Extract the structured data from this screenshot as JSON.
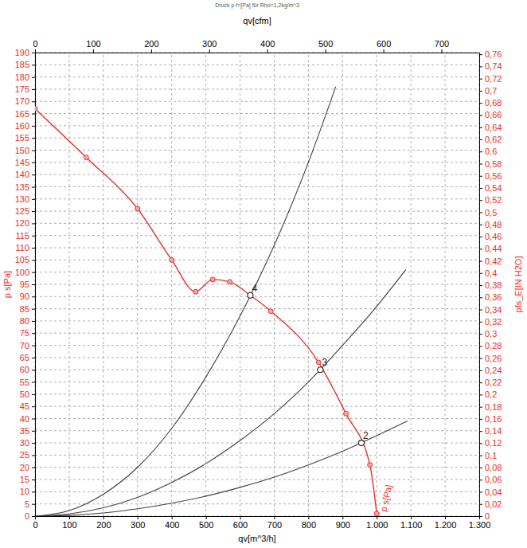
{
  "chart_data": {
    "type": "line",
    "title": "Druck p f=[Pa] für Rho=1,2kg/m^3",
    "x_label": "qv[m^3/h]",
    "x2_label": "qv[cfm]",
    "y_label": "p s[Pa]",
    "y2_label": "pfs_E[IN H2O]",
    "grid": true,
    "xlim": [
      0,
      1300
    ],
    "xticks": [
      0,
      100,
      200,
      300,
      400,
      500,
      600,
      700,
      800,
      900,
      {
        "value": 1000,
        "label": "1.000"
      },
      {
        "value": 1100,
        "label": "1.100"
      },
      {
        "value": 1200,
        "label": "1.200"
      },
      {
        "value": 1300,
        "label": "1.300"
      }
    ],
    "x2lim": [
      0,
      765.1
    ],
    "x2ticks": [
      0,
      100,
      200,
      300,
      400,
      500,
      600,
      700
    ],
    "ylim": [
      0,
      190
    ],
    "yticks": [
      0,
      5,
      10,
      15,
      20,
      25,
      30,
      35,
      40,
      45,
      50,
      55,
      60,
      65,
      70,
      75,
      80,
      85,
      90,
      95,
      100,
      105,
      110,
      115,
      120,
      125,
      130,
      135,
      140,
      145,
      150,
      155,
      160,
      165,
      170,
      175,
      180,
      185,
      190
    ],
    "y2lim": [
      0,
      0.7628
    ],
    "y2ticks": [
      0,
      {
        "value": 0.02,
        "label": "0,02"
      },
      {
        "value": 0.04,
        "label": "0,04"
      },
      {
        "value": 0.06,
        "label": "0,06"
      },
      {
        "value": 0.08,
        "label": "0,08"
      },
      {
        "value": 0.1,
        "label": "0,1"
      },
      {
        "value": 0.12,
        "label": "0,12"
      },
      {
        "value": 0.14,
        "label": "0,14"
      },
      {
        "value": 0.16,
        "label": "0,16"
      },
      {
        "value": 0.18,
        "label": "0,18"
      },
      {
        "value": 0.2,
        "label": "0,2"
      },
      {
        "value": 0.22,
        "label": "0,22"
      },
      {
        "value": 0.24,
        "label": "0,24"
      },
      {
        "value": 0.26,
        "label": "0,26"
      },
      {
        "value": 0.28,
        "label": "0,28"
      },
      {
        "value": 0.3,
        "label": "0,3"
      },
      {
        "value": 0.32,
        "label": "0,32"
      },
      {
        "value": 0.34,
        "label": "0,34"
      },
      {
        "value": 0.36,
        "label": "0,36"
      },
      {
        "value": 0.38,
        "label": "0,38"
      },
      {
        "value": 0.4,
        "label": "0,4"
      },
      {
        "value": 0.42,
        "label": "0,42"
      },
      {
        "value": 0.44,
        "label": "0,44"
      },
      {
        "value": 0.46,
        "label": "0,46"
      },
      {
        "value": 0.48,
        "label": "0,48"
      },
      {
        "value": 0.5,
        "label": "0,5"
      },
      {
        "value": 0.52,
        "label": "0,52"
      },
      {
        "value": 0.54,
        "label": "0,54"
      },
      {
        "value": 0.56,
        "label": "0,56"
      },
      {
        "value": 0.58,
        "label": "0,58"
      },
      {
        "value": 0.6,
        "label": "0,6"
      },
      {
        "value": 0.62,
        "label": "0,62"
      },
      {
        "value": 0.64,
        "label": "0,64"
      },
      {
        "value": 0.66,
        "label": "0,66"
      },
      {
        "value": 0.68,
        "label": "0,68"
      },
      {
        "value": 0.7,
        "label": "0,7"
      },
      {
        "value": 0.72,
        "label": "0,72"
      },
      {
        "value": 0.74,
        "label": "0,74"
      },
      {
        "value": 0.76,
        "label": "0,76"
      }
    ],
    "series": [
      {
        "name": "p s[Pa]",
        "color": "#e8302a",
        "marker": "circle",
        "line_style": "solid",
        "x": [
          0,
          150,
          300,
          400,
          470,
          520,
          570,
          630,
          690,
          830,
          910,
          980,
          1000
        ],
        "values": [
          167,
          147,
          126,
          105,
          92,
          97,
          96,
          90.5,
          84,
          63,
          42,
          21,
          1
        ]
      },
      {
        "name": "4",
        "color": "#404040",
        "marker": "none",
        "line_style": "solid",
        "x": [
          0,
          100,
          200,
          300,
          400,
          500,
          600,
          700,
          800,
          880
        ],
        "values": [
          0,
          2.3,
          9,
          20,
          36,
          57,
          82,
          111,
          145,
          176
        ],
        "operating_point": {
          "x": 630,
          "y": 90.5
        }
      },
      {
        "name": "3",
        "color": "#404040",
        "marker": "none",
        "line_style": "solid",
        "x": [
          0,
          100,
          200,
          300,
          400,
          500,
          600,
          700,
          800,
          900,
          1000,
          1085
        ],
        "values": [
          0,
          0.9,
          3.4,
          7.7,
          13.8,
          21.5,
          31,
          42,
          55,
          70,
          86,
          101
        ],
        "operating_point": {
          "x": 835,
          "y": 60
        }
      },
      {
        "name": "2",
        "color": "#404040",
        "marker": "none",
        "line_style": "solid",
        "x": [
          0,
          100,
          200,
          300,
          400,
          500,
          600,
          700,
          800,
          900,
          1000,
          1090
        ],
        "values": [
          0,
          0.3,
          1.3,
          3,
          5.3,
          8.2,
          11.8,
          16,
          21,
          26.6,
          33,
          39
        ],
        "operating_point": {
          "x": 955,
          "y": 30
        }
      }
    ]
  }
}
